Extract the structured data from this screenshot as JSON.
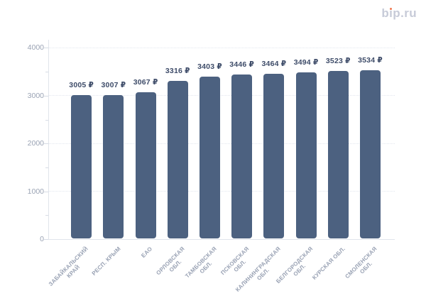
{
  "logo": {
    "text": "bip.ru",
    "text_color": "#c7cbd8",
    "dot_color": "#f0764e"
  },
  "chart_data": {
    "type": "bar",
    "title": "",
    "xlabel": "",
    "ylabel": "",
    "legend": "none",
    "grid": "horizontal-dotted-at-major-ticks",
    "categories": [
      "ЗАБАЙКАЛЬСКИЙ КРАЙ",
      "РЕСП. КРЫМ",
      "ЕАО",
      "ОРЛОВСКАЯ ОБЛ.",
      "ТАМБОВСКАЯ ОБЛ.",
      "ПСКОВСКАЯ ОБЛ.",
      "КАЛИНИНГРАДСКАЯ ОБЛ.",
      "БЕЛГОРОДСКАЯ ОБЛ.",
      "КУРСКАЯ ОБЛ.",
      "СМОЛЕНСКАЯ ОБЛ."
    ],
    "categories_wrapped": [
      [
        "ЗАБАЙКАЛЬСКИЙ",
        "КРАЙ"
      ],
      [
        "РЕСП. КРЫМ"
      ],
      [
        "ЕАО"
      ],
      [
        "ОРЛОВСКАЯ",
        "ОБЛ."
      ],
      [
        "ТАМБОВСКАЯ",
        "ОБЛ."
      ],
      [
        "ПСКОВСКАЯ",
        "ОБЛ."
      ],
      [
        "КАЛИНИНГРАДСКАЯ",
        "ОБЛ."
      ],
      [
        "БЕЛГОРОДСКАЯ",
        "ОБЛ."
      ],
      [
        "КУРСКАЯ ОБЛ."
      ],
      [
        "СМОЛЕНСКАЯ",
        "ОБЛ."
      ]
    ],
    "values": [
      3005,
      3007,
      3067,
      3316,
      3403,
      3446,
      3464,
      3494,
      3523,
      3534
    ],
    "value_suffix": " ₽",
    "ylim": [
      0,
      4000
    ],
    "yticks": [
      0,
      1000,
      2000,
      3000,
      4000
    ],
    "y_minor_step": 500,
    "colors": {
      "bar": "#4c6180",
      "value_label": "#3e4c69",
      "axis_label": "#9aa3b4",
      "category_label": "#99a2b4",
      "gridline": "#e2e6ee",
      "axis_line": "#e0e4eb",
      "background": "#ffffff"
    }
  }
}
